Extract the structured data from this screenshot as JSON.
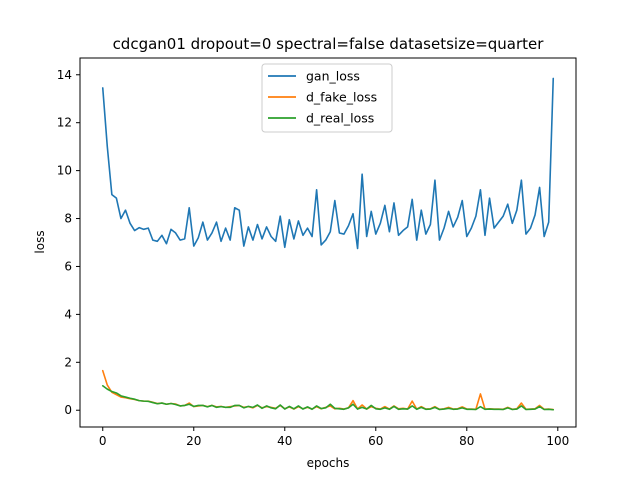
{
  "chart_data": {
    "type": "line",
    "title": "cdcgan01 dropout=0 spectral=false datasetsize=quarter",
    "xlabel": "epochs",
    "ylabel": "loss",
    "xlim": [
      -5,
      104
    ],
    "ylim": [
      -0.7,
      14.7
    ],
    "xticks": [
      0,
      20,
      40,
      60,
      80,
      100
    ],
    "yticks": [
      0,
      2,
      4,
      6,
      8,
      10,
      12,
      14
    ],
    "grid": false,
    "legend_position": "top-center",
    "x": [
      0,
      1,
      2,
      3,
      4,
      5,
      6,
      7,
      8,
      9,
      10,
      11,
      12,
      13,
      14,
      15,
      16,
      17,
      18,
      19,
      20,
      21,
      22,
      23,
      24,
      25,
      26,
      27,
      28,
      29,
      30,
      31,
      32,
      33,
      34,
      35,
      36,
      37,
      38,
      39,
      40,
      41,
      42,
      43,
      44,
      45,
      46,
      47,
      48,
      49,
      50,
      51,
      52,
      53,
      54,
      55,
      56,
      57,
      58,
      59,
      60,
      61,
      62,
      63,
      64,
      65,
      66,
      67,
      68,
      69,
      70,
      71,
      72,
      73,
      74,
      75,
      76,
      77,
      78,
      79,
      80,
      81,
      82,
      83,
      84,
      85,
      86,
      87,
      88,
      89,
      90,
      91,
      92,
      93,
      94,
      95,
      96,
      97,
      98,
      99
    ],
    "series": [
      {
        "name": "gan_loss",
        "color": "#1f77b4",
        "values": [
          13.45,
          11.0,
          9.0,
          8.85,
          8.0,
          8.35,
          7.8,
          7.5,
          7.62,
          7.55,
          7.6,
          7.1,
          7.05,
          7.3,
          6.95,
          7.55,
          7.4,
          7.1,
          7.15,
          8.45,
          6.85,
          7.2,
          7.85,
          7.1,
          7.4,
          7.85,
          7.05,
          7.6,
          7.1,
          8.45,
          8.35,
          6.85,
          7.65,
          7.1,
          7.75,
          7.15,
          7.65,
          7.25,
          7.05,
          8.1,
          6.8,
          7.95,
          7.15,
          7.9,
          7.3,
          7.6,
          7.25,
          9.2,
          6.9,
          7.1,
          7.45,
          8.75,
          7.4,
          7.35,
          7.7,
          8.2,
          6.75,
          9.85,
          7.25,
          8.3,
          7.35,
          7.8,
          8.55,
          7.45,
          8.65,
          7.3,
          7.5,
          7.65,
          8.8,
          7.1,
          8.35,
          7.35,
          7.75,
          9.6,
          7.1,
          7.6,
          8.3,
          7.65,
          8.05,
          8.75,
          7.25,
          7.6,
          8.1,
          9.2,
          7.3,
          8.85,
          7.6,
          7.85,
          8.1,
          8.6,
          7.8,
          8.35,
          9.6,
          7.35,
          7.6,
          8.15,
          9.3,
          7.25,
          7.85,
          13.85
        ]
      },
      {
        "name": "d_fake_loss",
        "color": "#ff7f0e",
        "values": [
          1.65,
          1.05,
          0.75,
          0.65,
          0.55,
          0.52,
          0.48,
          0.45,
          0.4,
          0.38,
          0.38,
          0.33,
          0.28,
          0.3,
          0.25,
          0.28,
          0.26,
          0.18,
          0.2,
          0.3,
          0.15,
          0.18,
          0.2,
          0.15,
          0.2,
          0.14,
          0.16,
          0.12,
          0.15,
          0.18,
          0.2,
          0.12,
          0.15,
          0.1,
          0.2,
          0.1,
          0.15,
          0.12,
          0.08,
          0.2,
          0.06,
          0.14,
          0.05,
          0.15,
          0.06,
          0.12,
          0.05,
          0.15,
          0.06,
          0.12,
          0.18,
          0.06,
          0.08,
          0.05,
          0.1,
          0.4,
          0.05,
          0.22,
          0.05,
          0.15,
          0.08,
          0.05,
          0.15,
          0.05,
          0.18,
          0.06,
          0.08,
          0.05,
          0.38,
          0.05,
          0.15,
          0.05,
          0.06,
          0.15,
          0.04,
          0.06,
          0.12,
          0.05,
          0.06,
          0.14,
          0.05,
          0.05,
          0.04,
          0.68,
          0.05,
          0.06,
          0.05,
          0.05,
          0.04,
          0.12,
          0.04,
          0.06,
          0.3,
          0.04,
          0.05,
          0.06,
          0.2,
          0.04,
          0.05,
          0.03
        ]
      },
      {
        "name": "d_real_loss",
        "color": "#2ca02c",
        "values": [
          1.02,
          0.88,
          0.78,
          0.72,
          0.6,
          0.55,
          0.5,
          0.46,
          0.4,
          0.38,
          0.37,
          0.32,
          0.27,
          0.3,
          0.25,
          0.28,
          0.24,
          0.18,
          0.2,
          0.25,
          0.16,
          0.2,
          0.2,
          0.14,
          0.2,
          0.12,
          0.15,
          0.12,
          0.12,
          0.2,
          0.2,
          0.1,
          0.16,
          0.12,
          0.22,
          0.08,
          0.18,
          0.1,
          0.06,
          0.22,
          0.05,
          0.16,
          0.06,
          0.18,
          0.05,
          0.14,
          0.04,
          0.18,
          0.07,
          0.1,
          0.25,
          0.08,
          0.06,
          0.04,
          0.1,
          0.25,
          0.05,
          0.12,
          0.05,
          0.2,
          0.06,
          0.04,
          0.1,
          0.04,
          0.16,
          0.04,
          0.06,
          0.05,
          0.18,
          0.04,
          0.12,
          0.04,
          0.05,
          0.12,
          0.03,
          0.05,
          0.08,
          0.04,
          0.05,
          0.1,
          0.04,
          0.04,
          0.03,
          0.15,
          0.04,
          0.05,
          0.04,
          0.04,
          0.03,
          0.1,
          0.03,
          0.05,
          0.18,
          0.03,
          0.04,
          0.05,
          0.15,
          0.03,
          0.04,
          0.02
        ]
      }
    ]
  }
}
